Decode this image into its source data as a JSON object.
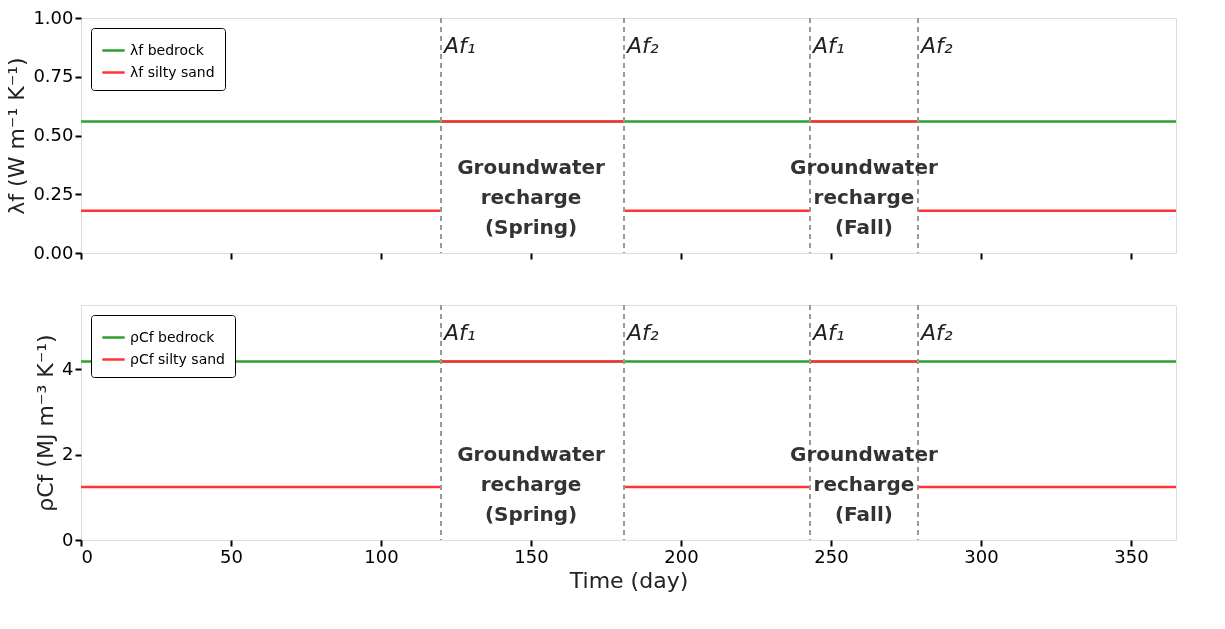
{
  "chart_data": [
    {
      "type": "line",
      "ylabel": "λf (W m⁻¹ K⁻¹)",
      "xlim": [
        0,
        365
      ],
      "xticks": [
        0,
        50,
        100,
        150,
        200,
        250,
        300,
        350
      ],
      "ylim": [
        0,
        1
      ],
      "yticks": [
        {
          "value": 0,
          "label": "0.00"
        },
        0.25,
        {
          "value": 0.5,
          "label": "0.50"
        },
        0.75,
        {
          "value": 1,
          "label": "1.00"
        }
      ],
      "tick_labels": "y",
      "grid": false,
      "legend": "top left",
      "line_style": "solid",
      "marker": "none",
      "series": [
        {
          "name": "λf bedrock",
          "color": "#2ca02c",
          "x": [
            0,
            365
          ],
          "values": [
            0.56,
            0.56
          ]
        },
        {
          "name": "λf silty sand",
          "color": "#ff3333",
          "x": [
            0,
            120,
            null,
            120,
            181,
            null,
            181,
            243,
            null,
            243,
            279,
            null,
            279,
            365
          ],
          "values": [
            0.18,
            0.18,
            null,
            0.56,
            0.56,
            null,
            0.18,
            0.18,
            null,
            0.56,
            0.56,
            null,
            0.18,
            0.18
          ]
        }
      ],
      "ref_lines": [
        {
          "axis": "x",
          "value": 120,
          "label": "Af₁",
          "color": "#999999",
          "line_style": "dashed"
        },
        {
          "axis": "x",
          "value": 181,
          "label": "Af₂",
          "color": "#999999",
          "line_style": "dashed"
        },
        {
          "axis": "x",
          "value": 243,
          "label": "Af₁",
          "color": "#999999",
          "line_style": "dashed"
        },
        {
          "axis": "x",
          "value": 279,
          "label": "Af₂",
          "color": "#999999",
          "line_style": "dashed"
        }
      ],
      "annotations": [
        "Groundwater\nrecharge\n(Spring)",
        "Groundwater\nrecharge\n(Fall)"
      ]
    },
    {
      "type": "line",
      "xlabel": "Time (day)",
      "ylabel": "ρCf (MJ m⁻³ K⁻¹)",
      "xlim": [
        0,
        365
      ],
      "xticks": [
        0,
        50,
        100,
        150,
        200,
        250,
        300,
        350
      ],
      "ylim": [
        0,
        5.5
      ],
      "yticks": [
        0,
        2,
        4
      ],
      "grid": false,
      "legend": "top left",
      "line_style": "solid",
      "marker": "none",
      "series": [
        {
          "name": "ρCf bedrock",
          "color": "#2ca02c",
          "x": [
            0,
            365
          ],
          "values": [
            4.18,
            4.18
          ]
        },
        {
          "name": "ρCf silty sand",
          "color": "#ff3333",
          "x": [
            0,
            120,
            null,
            120,
            181,
            null,
            181,
            243,
            null,
            243,
            279,
            null,
            279,
            365
          ],
          "values": [
            1.24,
            1.24,
            null,
            4.18,
            4.18,
            null,
            1.24,
            1.24,
            null,
            4.18,
            4.18,
            null,
            1.24,
            1.24
          ]
        }
      ],
      "ref_lines": [
        {
          "axis": "x",
          "value": 120,
          "label": "Af₁",
          "color": "#999999",
          "line_style": "dashed"
        },
        {
          "axis": "x",
          "value": 181,
          "label": "Af₂",
          "color": "#999999",
          "line_style": "dashed"
        },
        {
          "axis": "x",
          "value": 243,
          "label": "Af₁",
          "color": "#999999",
          "line_style": "dashed"
        },
        {
          "axis": "x",
          "value": 279,
          "label": "Af₂",
          "color": "#999999",
          "line_style": "dashed"
        }
      ],
      "annotations": [
        "Groundwater\nrecharge\n(Spring)",
        "Groundwater\nrecharge\n(Fall)"
      ]
    }
  ]
}
